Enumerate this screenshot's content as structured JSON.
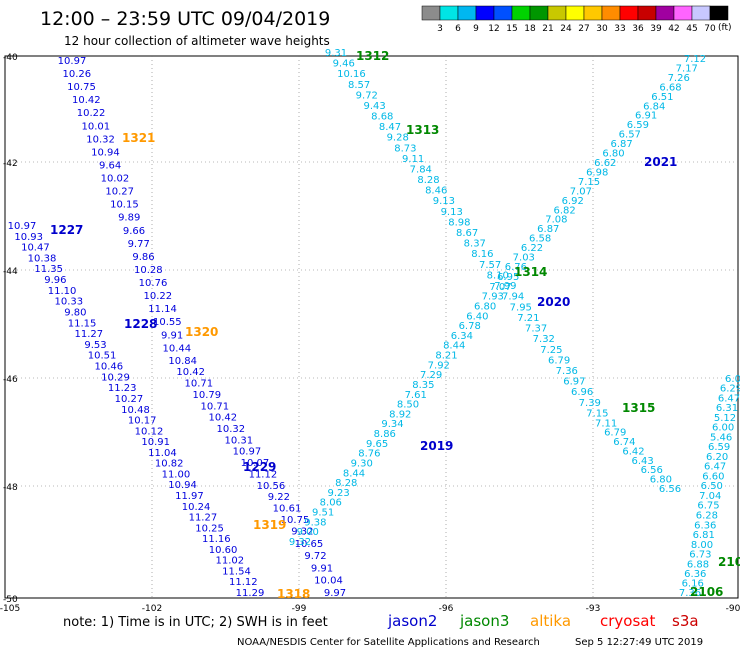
{
  "header": {
    "title": "12:00 – 23:59 UTC 09/04/2019",
    "subtitle": "12 hour collection of altimeter wave heights"
  },
  "legend": {
    "unit": "(ft)",
    "colors": [
      "#8c8c8c",
      "#00e5e5",
      "#00b7f0",
      "#0000ff",
      "#0050ff",
      "#00d200",
      "#009600",
      "#c8c800",
      "#ffff00",
      "#ffc800",
      "#ff8c00",
      "#ff0000",
      "#c80000",
      "#a000a0",
      "#ff64ff",
      "#c8c8ff",
      "#000000"
    ],
    "labels": [
      "3",
      "6",
      "9",
      "12",
      "15",
      "18",
      "21",
      "24",
      "27",
      "30",
      "33",
      "36",
      "39",
      "42",
      "45",
      "70"
    ]
  },
  "map": {
    "lat_labels": [
      "-40",
      "-42",
      "-44",
      "-46",
      "-48",
      "-50"
    ],
    "lon_labels": [
      "-105",
      "-102",
      "-99",
      "-96",
      "-93",
      "-90"
    ],
    "passes": [
      {
        "id": "1321",
        "color": "#ff9900"
      },
      {
        "id": "1227",
        "color": "#0000cc"
      },
      {
        "id": "1228",
        "color": "#0000cc"
      },
      {
        "id": "1320",
        "color": "#ff9900"
      },
      {
        "id": "1229",
        "color": "#0000cc"
      },
      {
        "id": "1319",
        "color": "#ff9900"
      },
      {
        "id": "1318",
        "color": "#ff9900"
      },
      {
        "id": "1312",
        "color": "#008800"
      },
      {
        "id": "1313",
        "color": "#008800"
      },
      {
        "id": "1314",
        "color": "#008800"
      },
      {
        "id": "1315",
        "color": "#008800"
      },
      {
        "id": "2021",
        "color": "#0000cc"
      },
      {
        "id": "2020",
        "color": "#0000cc"
      },
      {
        "id": "2019",
        "color": "#0000cc"
      },
      {
        "id": "2106",
        "color": "#008800"
      },
      {
        "id": "210",
        "color": "#008800"
      }
    ],
    "tracks": [
      {
        "name": "west-track-a",
        "color": "#0000dd",
        "values": [
          "10.97",
          "10.26",
          "10.75",
          "10.42",
          "10.22",
          "10.01",
          "10.32",
          "10.94",
          "9.64",
          "10.02",
          "10.27",
          "10.15",
          "9.89",
          "9.66",
          "9.77",
          "9.86",
          "10.28",
          "10.76",
          "10.22",
          "11.14",
          "10.55",
          "9.91",
          "10.44",
          "10.84",
          "10.42",
          "10.71",
          "10.79",
          "10.71",
          "10.42",
          "10.32",
          "10.31",
          "10.97",
          "10.07",
          "11.12",
          "10.56",
          "9.22",
          "10.61",
          "10.75",
          "9.32",
          "10.65",
          "9.72",
          "9.91",
          "10.04",
          "9.97"
        ]
      },
      {
        "name": "west-track-b",
        "color": "#0000dd",
        "values": [
          "10.97",
          "10.93",
          "10.47",
          "10.38",
          "11.35",
          "9.96",
          "11.10",
          "10.33",
          "9.80",
          "11.15",
          "11.27",
          "9.53",
          "10.51",
          "10.46",
          "10.29",
          "11.23",
          "10.27",
          "10.48",
          "10.17",
          "10.12",
          "10.91",
          "11.04",
          "10.82",
          "11.00",
          "10.94",
          "11.97",
          "10.24",
          "11.27",
          "10.25",
          "11.16",
          "10.60",
          "11.02",
          "11.54",
          "11.12",
          "11.29"
        ]
      },
      {
        "name": "track-1312-1313",
        "color": "#00b8e6",
        "values": [
          "9.31",
          "9.46",
          "10.16",
          "8.57",
          "9.72",
          "9.43",
          "8.68",
          "8.47",
          "9.28",
          "8.73",
          "9.11",
          "7.84",
          "8.28",
          "8.46",
          "9.13",
          "9.13",
          "8.98",
          "8.67",
          "8.37",
          "8.16",
          "7.57",
          "8.10",
          "7.99",
          "7.94",
          "7.95",
          "7.21",
          "7.37",
          "7.32",
          "7.25",
          "6.79",
          "7.36",
          "6.97",
          "6.96",
          "7.39",
          "7.15",
          "7.11",
          "6.79",
          "6.74",
          "6.42",
          "6.43",
          "6.56",
          "6.80",
          "6.56"
        ]
      },
      {
        "name": "track-2021-2020",
        "color": "#00b8e6",
        "values": [
          "7.12",
          "7.17",
          "7.26",
          "6.68",
          "6.51",
          "6.84",
          "6.91",
          "6.59",
          "6.57",
          "6.87",
          "6.80",
          "6.62",
          "6.98",
          "7.15",
          "7.07",
          "6.92",
          "6.82",
          "7.08",
          "6.87",
          "6.58",
          "6.22",
          "7.03",
          "6.76",
          "6.95",
          "7.07",
          "7.93",
          "6.80",
          "6.40",
          "6.78",
          "6.34",
          "8.44",
          "8.21",
          "7.92",
          "7.29",
          "8.35",
          "7.61",
          "8.50",
          "8.92",
          "9.34",
          "8.86",
          "9.65",
          "8.76",
          "9.30",
          "8.44",
          "8.28",
          "9.23",
          "8.06",
          "9.51",
          "9.38",
          "9.00",
          "9.32"
        ]
      },
      {
        "name": "east-track",
        "color": "#00b8e6",
        "values": [
          "6.0",
          "6.29",
          "6.47",
          "6.31",
          "5.12",
          "6.00",
          "5.46",
          "6.59",
          "6.20",
          "6.47",
          "6.60",
          "6.50",
          "7.04",
          "6.75",
          "6.28",
          "6.36",
          "6.81",
          "8.00",
          "6.73",
          "6.88",
          "6.36",
          "6.16",
          "7.36"
        ]
      }
    ]
  },
  "footer": {
    "note": "note:  1) Time is in UTC;  2) SWH is in feet",
    "missions": [
      {
        "name": "jason2",
        "color": "#0000cc"
      },
      {
        "name": "jason3",
        "color": "#008800"
      },
      {
        "name": "altika",
        "color": "#ff9900"
      },
      {
        "name": "cryosat",
        "color": "#ff0000"
      },
      {
        "name": "s3a",
        "color": "#cc0000"
      }
    ],
    "credit": "NOAA/NESDIS Center for Satellite Applications and Research",
    "timestamp": "Sep  5 12:27:49 UTC 2019"
  }
}
